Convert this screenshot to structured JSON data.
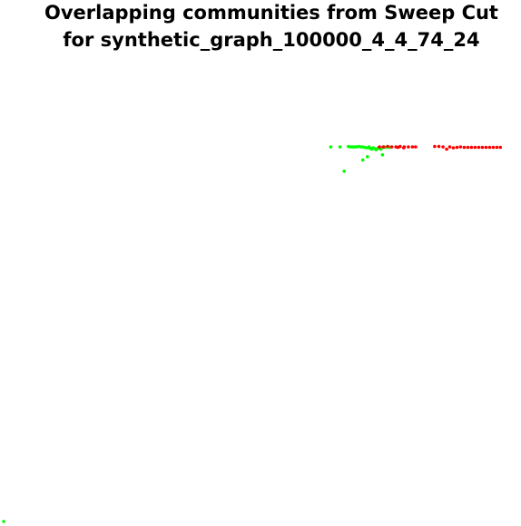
{
  "chart_data": {
    "type": "scatter",
    "title_lines": [
      "Overlapping communities from Sweep Cut",
      "for synthetic_graph_100000_4_4_74_24"
    ],
    "xlabel": "",
    "ylabel": "",
    "xlim": [
      0,
      1
    ],
    "ylim": [
      0,
      1
    ],
    "axes_visible": false,
    "grid": false,
    "legend": "none",
    "series": [
      {
        "color": "#00ff00",
        "points": [
          [
            0.634,
            0.802
          ],
          [
            0.652,
            0.802
          ],
          [
            0.668,
            0.803
          ],
          [
            0.672,
            0.802
          ],
          [
            0.676,
            0.802
          ],
          [
            0.68,
            0.802
          ],
          [
            0.684,
            0.802
          ],
          [
            0.688,
            0.803
          ],
          [
            0.692,
            0.802
          ],
          [
            0.696,
            0.802
          ],
          [
            0.7,
            0.801
          ],
          [
            0.704,
            0.8
          ],
          [
            0.708,
            0.802
          ],
          [
            0.71,
            0.799
          ],
          [
            0.713,
            0.797
          ],
          [
            0.716,
            0.8
          ],
          [
            0.719,
            0.798
          ],
          [
            0.722,
            0.796
          ],
          [
            0.725,
            0.799
          ],
          [
            0.728,
            0.8
          ],
          [
            0.731,
            0.797
          ],
          [
            0.734,
            0.801
          ],
          [
            0.737,
            0.802
          ],
          [
            0.74,
            0.801
          ],
          [
            0.744,
            0.802
          ],
          [
            0.748,
            0.801
          ],
          [
            0.705,
            0.781
          ],
          [
            0.696,
            0.774
          ],
          [
            0.734,
            0.785
          ],
          [
            0.66,
            0.75
          ],
          [
            0.002,
            0.0
          ]
        ]
      },
      {
        "color": "#ff0000",
        "points": [
          [
            0.728,
            0.802
          ],
          [
            0.736,
            0.802
          ],
          [
            0.744,
            0.803
          ],
          [
            0.752,
            0.802
          ],
          [
            0.76,
            0.802
          ],
          [
            0.768,
            0.803
          ],
          [
            0.776,
            0.802
          ],
          [
            0.784,
            0.802
          ],
          [
            0.792,
            0.802
          ],
          [
            0.798,
            0.802
          ],
          [
            0.775,
            0.8
          ],
          [
            0.764,
            0.801
          ],
          [
            0.835,
            0.803
          ],
          [
            0.843,
            0.803
          ],
          [
            0.851,
            0.802
          ],
          [
            0.858,
            0.797
          ],
          [
            0.864,
            0.802
          ],
          [
            0.871,
            0.8
          ],
          [
            0.878,
            0.801
          ],
          [
            0.885,
            0.802
          ],
          [
            0.892,
            0.801
          ],
          [
            0.899,
            0.801
          ],
          [
            0.906,
            0.801
          ],
          [
            0.913,
            0.801
          ],
          [
            0.92,
            0.801
          ],
          [
            0.927,
            0.801
          ],
          [
            0.934,
            0.801
          ],
          [
            0.941,
            0.801
          ],
          [
            0.948,
            0.801
          ],
          [
            0.955,
            0.801
          ],
          [
            0.962,
            0.801
          ]
        ]
      }
    ]
  }
}
